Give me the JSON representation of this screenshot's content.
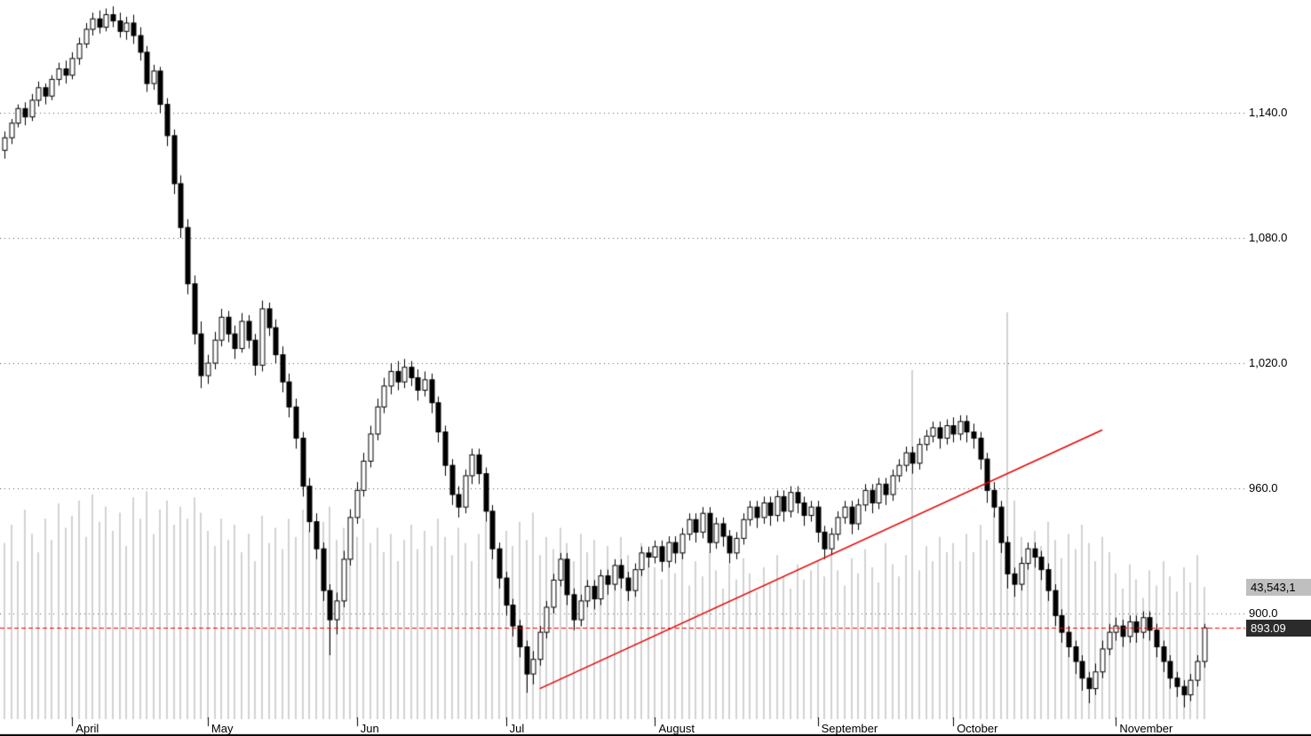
{
  "chart_data": {
    "type": "candlestick",
    "title": "",
    "grid": "dotted-horizontal",
    "legend_position": "none",
    "last_price": 893.09,
    "last_price_label": "893.09",
    "volume_axis_label": "43,543,1",
    "colors": {
      "up_fill": "#ffffff",
      "down_fill": "#000000",
      "outline": "#000000",
      "volume_bar": "#d2d2d2",
      "grid_dot": "#555555",
      "trendline": "#e80000",
      "last_price_line": "#ff0000",
      "badge_bg": "#2b2b2b",
      "volume_label_bg": "#bfbfbf"
    },
    "y_axis": {
      "ticks": [
        1140,
        1080,
        1020,
        960,
        900
      ],
      "tick_labels": [
        "1,140.0",
        "1,080.0",
        "1,020.0",
        "960.0",
        "900.0"
      ],
      "price_range_visible": [
        845,
        1193
      ]
    },
    "x_axis": {
      "months": [
        {
          "label": "April",
          "start_index": 10
        },
        {
          "label": "May",
          "start_index": 30
        },
        {
          "label": "Jun",
          "start_index": 52
        },
        {
          "label": "Jul",
          "start_index": 74
        },
        {
          "label": "August",
          "start_index": 96
        },
        {
          "label": "September",
          "start_index": 120
        },
        {
          "label": "October",
          "start_index": 140
        },
        {
          "label": "November",
          "start_index": 164
        }
      ]
    },
    "trendline": {
      "from_index": 79,
      "from_price": 864,
      "to_index": 162,
      "to_price": 988
    },
    "candles": [
      [
        1122,
        1131,
        1118,
        1128
      ],
      [
        1128,
        1137,
        1125,
        1135
      ],
      [
        1135,
        1144,
        1133,
        1142
      ],
      [
        1142,
        1145,
        1134,
        1138
      ],
      [
        1138,
        1149,
        1136,
        1146
      ],
      [
        1146,
        1155,
        1143,
        1152
      ],
      [
        1152,
        1154,
        1144,
        1148
      ],
      [
        1148,
        1158,
        1146,
        1156
      ],
      [
        1156,
        1164,
        1153,
        1161
      ],
      [
        1161,
        1165,
        1154,
        1158
      ],
      [
        1158,
        1169,
        1156,
        1166
      ],
      [
        1166,
        1176,
        1163,
        1173
      ],
      [
        1173,
        1183,
        1171,
        1180
      ],
      [
        1180,
        1188,
        1177,
        1185
      ],
      [
        1185,
        1189,
        1178,
        1181
      ],
      [
        1181,
        1190,
        1179,
        1187
      ],
      [
        1187,
        1191,
        1181,
        1184
      ],
      [
        1184,
        1188,
        1176,
        1179
      ],
      [
        1179,
        1186,
        1175,
        1183
      ],
      [
        1183,
        1187,
        1173,
        1177
      ],
      [
        1177,
        1181,
        1165,
        1169
      ],
      [
        1169,
        1172,
        1150,
        1154
      ],
      [
        1154,
        1163,
        1151,
        1160
      ],
      [
        1160,
        1162,
        1140,
        1144
      ],
      [
        1144,
        1147,
        1124,
        1129
      ],
      [
        1129,
        1132,
        1101,
        1106
      ],
      [
        1106,
        1110,
        1080,
        1085
      ],
      [
        1085,
        1089,
        1053,
        1058
      ],
      [
        1058,
        1062,
        1029,
        1034
      ],
      [
        1034,
        1040,
        1008,
        1014
      ],
      [
        1014,
        1024,
        1010,
        1020
      ],
      [
        1020,
        1035,
        1017,
        1031
      ],
      [
        1031,
        1046,
        1028,
        1042
      ],
      [
        1042,
        1045,
        1030,
        1034
      ],
      [
        1034,
        1038,
        1022,
        1027
      ],
      [
        1027,
        1044,
        1025,
        1040
      ],
      [
        1040,
        1043,
        1027,
        1031
      ],
      [
        1031,
        1034,
        1014,
        1019
      ],
      [
        1019,
        1050,
        1016,
        1046
      ],
      [
        1046,
        1049,
        1033,
        1037
      ],
      [
        1037,
        1041,
        1020,
        1024
      ],
      [
        1024,
        1028,
        1006,
        1011
      ],
      [
        1011,
        1015,
        994,
        999
      ],
      [
        999,
        1003,
        979,
        984
      ],
      [
        984,
        987,
        956,
        961
      ],
      [
        961,
        965,
        939,
        944
      ],
      [
        944,
        948,
        926,
        931
      ],
      [
        931,
        934,
        906,
        911
      ],
      [
        911,
        914,
        880,
        897
      ],
      [
        897,
        910,
        890,
        906
      ],
      [
        906,
        930,
        903,
        926
      ],
      [
        926,
        950,
        923,
        946
      ],
      [
        946,
        963,
        943,
        959
      ],
      [
        959,
        977,
        956,
        973
      ],
      [
        973,
        990,
        970,
        986
      ],
      [
        986,
        1003,
        983,
        999
      ],
      [
        999,
        1013,
        996,
        1009
      ],
      [
        1009,
        1020,
        1005,
        1016
      ],
      [
        1016,
        1021,
        1007,
        1011
      ],
      [
        1011,
        1022,
        1008,
        1018
      ],
      [
        1018,
        1021,
        1009,
        1013
      ],
      [
        1013,
        1017,
        1002,
        1007
      ],
      [
        1007,
        1016,
        1004,
        1012
      ],
      [
        1012,
        1015,
        996,
        1001
      ],
      [
        1001,
        1004,
        982,
        987
      ],
      [
        987,
        990,
        966,
        971
      ],
      [
        971,
        974,
        952,
        957
      ],
      [
        957,
        961,
        946,
        951
      ],
      [
        951,
        969,
        948,
        966
      ],
      [
        966,
        979,
        962,
        976
      ],
      [
        976,
        979,
        962,
        967
      ],
      [
        967,
        970,
        944,
        949
      ],
      [
        949,
        952,
        926,
        931
      ],
      [
        931,
        934,
        912,
        917
      ],
      [
        917,
        920,
        899,
        904
      ],
      [
        904,
        907,
        889,
        894
      ],
      [
        894,
        897,
        879,
        884
      ],
      [
        884,
        887,
        862,
        871
      ],
      [
        871,
        882,
        866,
        878
      ],
      [
        878,
        894,
        875,
        891
      ],
      [
        891,
        906,
        888,
        903
      ],
      [
        903,
        919,
        900,
        916
      ],
      [
        916,
        929,
        913,
        926
      ],
      [
        926,
        929,
        904,
        909
      ],
      [
        909,
        912,
        892,
        897
      ],
      [
        897,
        909,
        894,
        906
      ],
      [
        906,
        916,
        903,
        913
      ],
      [
        913,
        916,
        902,
        907
      ],
      [
        907,
        921,
        904,
        918
      ],
      [
        918,
        921,
        909,
        914
      ],
      [
        914,
        926,
        911,
        923
      ],
      [
        923,
        926,
        912,
        917
      ],
      [
        917,
        920,
        906,
        911
      ],
      [
        911,
        924,
        908,
        921
      ],
      [
        921,
        932,
        918,
        929
      ],
      [
        929,
        932,
        922,
        927
      ],
      [
        927,
        935,
        924,
        932
      ],
      [
        932,
        935,
        920,
        925
      ],
      [
        925,
        937,
        922,
        934
      ],
      [
        934,
        937,
        924,
        929
      ],
      [
        929,
        941,
        926,
        938
      ],
      [
        938,
        948,
        935,
        945
      ],
      [
        945,
        948,
        934,
        939
      ],
      [
        939,
        951,
        936,
        948
      ],
      [
        948,
        951,
        929,
        934
      ],
      [
        934,
        946,
        931,
        943
      ],
      [
        943,
        946,
        932,
        937
      ],
      [
        937,
        940,
        924,
        929
      ],
      [
        929,
        939,
        926,
        936
      ],
      [
        936,
        948,
        933,
        945
      ],
      [
        945,
        954,
        942,
        951
      ],
      [
        951,
        954,
        941,
        946
      ],
      [
        946,
        956,
        943,
        953
      ],
      [
        953,
        956,
        942,
        947
      ],
      [
        947,
        959,
        944,
        956
      ],
      [
        956,
        959,
        944,
        949
      ],
      [
        949,
        961,
        946,
        958
      ],
      [
        958,
        961,
        948,
        953
      ],
      [
        953,
        956,
        942,
        947
      ],
      [
        947,
        954,
        944,
        951
      ],
      [
        951,
        954,
        934,
        939
      ],
      [
        939,
        942,
        926,
        931
      ],
      [
        931,
        941,
        928,
        938
      ],
      [
        938,
        949,
        935,
        946
      ],
      [
        946,
        954,
        943,
        951
      ],
      [
        951,
        954,
        938,
        943
      ],
      [
        943,
        955,
        940,
        952
      ],
      [
        952,
        962,
        949,
        959
      ],
      [
        959,
        962,
        948,
        953
      ],
      [
        953,
        965,
        950,
        962
      ],
      [
        962,
        965,
        952,
        957
      ],
      [
        957,
        969,
        954,
        966
      ],
      [
        966,
        974,
        963,
        971
      ],
      [
        971,
        980,
        968,
        977
      ],
      [
        977,
        980,
        967,
        972
      ],
      [
        972,
        984,
        969,
        981
      ],
      [
        981,
        988,
        978,
        985
      ],
      [
        985,
        992,
        982,
        989
      ],
      [
        989,
        992,
        979,
        984
      ],
      [
        984,
        993,
        981,
        990
      ],
      [
        990,
        994,
        982,
        986
      ],
      [
        986,
        995,
        983,
        992
      ],
      [
        992,
        995,
        982,
        987
      ],
      [
        987,
        991,
        979,
        984
      ],
      [
        984,
        987,
        969,
        974
      ],
      [
        974,
        977,
        953,
        959
      ],
      [
        959,
        963,
        946,
        951
      ],
      [
        951,
        954,
        929,
        934
      ],
      [
        934,
        937,
        912,
        919
      ],
      [
        919,
        922,
        908,
        914
      ],
      [
        914,
        927,
        911,
        924
      ],
      [
        924,
        934,
        921,
        931
      ],
      [
        931,
        934,
        922,
        927
      ],
      [
        927,
        930,
        916,
        921
      ],
      [
        921,
        924,
        906,
        911
      ],
      [
        911,
        914,
        894,
        899
      ],
      [
        899,
        902,
        886,
        891
      ],
      [
        891,
        894,
        879,
        884
      ],
      [
        884,
        887,
        871,
        877
      ],
      [
        877,
        880,
        863,
        869
      ],
      [
        869,
        872,
        857,
        864
      ],
      [
        864,
        876,
        861,
        872
      ],
      [
        872,
        887,
        869,
        883
      ],
      [
        883,
        895,
        880,
        891
      ],
      [
        891,
        898,
        887,
        894
      ],
      [
        894,
        897,
        884,
        889
      ],
      [
        889,
        899,
        886,
        896
      ],
      [
        896,
        899,
        886,
        891
      ],
      [
        891,
        901,
        888,
        898
      ],
      [
        898,
        901,
        887,
        892
      ],
      [
        892,
        895,
        879,
        884
      ],
      [
        884,
        887,
        872,
        877
      ],
      [
        877,
        880,
        864,
        869
      ],
      [
        869,
        872,
        860,
        865
      ],
      [
        865,
        868,
        855,
        861
      ],
      [
        861,
        871,
        858,
        868
      ],
      [
        868,
        880,
        865,
        877
      ],
      [
        877,
        895,
        874,
        893.09
      ]
    ],
    "volumes_millions": [
      58,
      64,
      52,
      69,
      61,
      55,
      66,
      59,
      71,
      63,
      67,
      72,
      60,
      74,
      65,
      70,
      62,
      68,
      57,
      73,
      66,
      75,
      61,
      69,
      72,
      64,
      70,
      66,
      73,
      68,
      62,
      57,
      66,
      59,
      64,
      55,
      61,
      52,
      67,
      58,
      63,
      56,
      66,
      60,
      69,
      62,
      57,
      65,
      70,
      59,
      63,
      55,
      60,
      66,
      58,
      63,
      55,
      61,
      52,
      59,
      64,
      56,
      62,
      57,
      66,
      60,
      54,
      63,
      58,
      52,
      61,
      65,
      59,
      56,
      62,
      57,
      65,
      59,
      68,
      54,
      60,
      56,
      63,
      58,
      52,
      61,
      55,
      59,
      48,
      57,
      51,
      60,
      54,
      49,
      58,
      52,
      50,
      46,
      54,
      48,
      57,
      44,
      52,
      47,
      55,
      49,
      43,
      51,
      46,
      53,
      48,
      42,
      50,
      45,
      54,
      47,
      43,
      51,
      46,
      49,
      52,
      47,
      55,
      49,
      44,
      53,
      48,
      56,
      50,
      45,
      58,
      51,
      47,
      54,
      115,
      49,
      57,
      52,
      60,
      55,
      58,
      52,
      61,
      55,
      64,
      59,
      68,
      63,
      134,
      72,
      60,
      54,
      62,
      57,
      65,
      59,
      53,
      61,
      56,
      64,
      58,
      52,
      60,
      55,
      48,
      43,
      51,
      46,
      40,
      49,
      44,
      52,
      47,
      42,
      50,
      45,
      54,
      43.5
    ]
  }
}
